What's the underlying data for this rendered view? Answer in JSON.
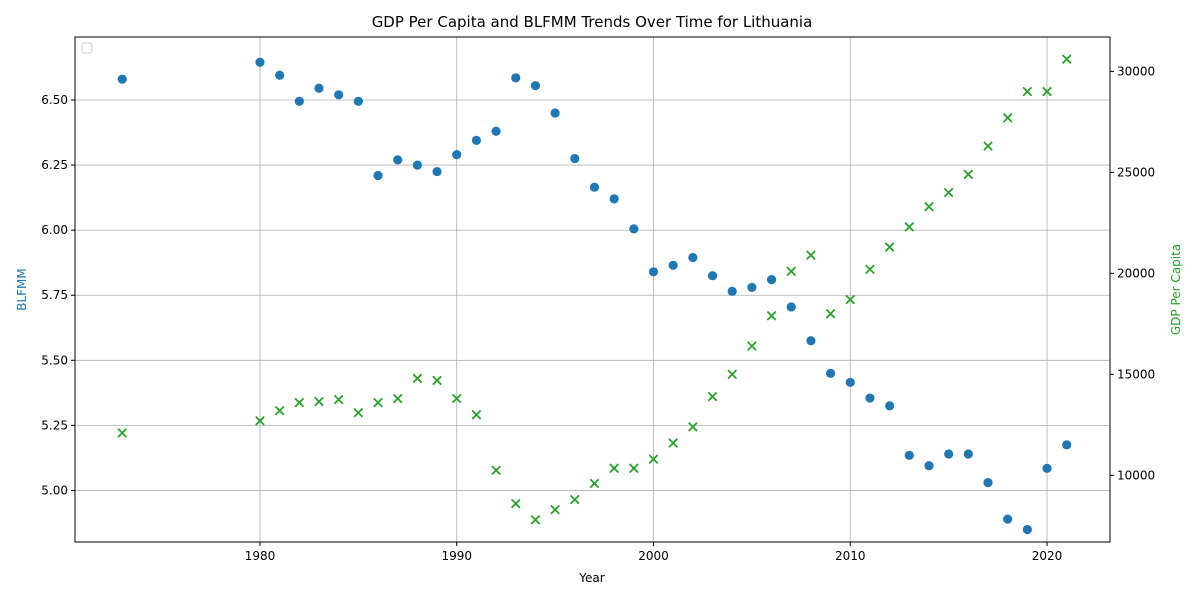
{
  "chart_data": {
    "type": "scatter",
    "title": "GDP Per Capita and BLFMM Trends Over Time for Lithuania",
    "xlabel": "Year",
    "ylabel_left": "BLFMM",
    "ylabel_right": "GDP Per Capita",
    "xlim": [
      1970.6,
      2023.2
    ],
    "ylim_left": [
      4.802,
      6.742
    ],
    "ylim_right": [
      6700,
      31700
    ],
    "x_ticks": [
      1980,
      1990,
      2000,
      2010,
      2020
    ],
    "y_left_ticks": [
      "5.00",
      "5.25",
      "5.50",
      "5.75",
      "6.00",
      "6.25",
      "6.50"
    ],
    "y_right_ticks": [
      "10000",
      "15000",
      "20000",
      "25000",
      "30000"
    ],
    "grid": true,
    "legend": {
      "position": "top-left",
      "entries": []
    },
    "colors": {
      "blfmm": "#1f77b4",
      "gdp": "#2ca02c"
    },
    "series": [
      {
        "name": "BLFMM",
        "axis": "left",
        "marker": "circle",
        "points": [
          [
            1973,
            6.58
          ],
          [
            1980,
            6.645
          ],
          [
            1981,
            6.595
          ],
          [
            1982,
            6.495
          ],
          [
            1983,
            6.545
          ],
          [
            1984,
            6.52
          ],
          [
            1985,
            6.495
          ],
          [
            1986,
            6.21
          ],
          [
            1987,
            6.27
          ],
          [
            1988,
            6.25
          ],
          [
            1989,
            6.225
          ],
          [
            1990,
            6.29
          ],
          [
            1991,
            6.345
          ],
          [
            1992,
            6.38
          ],
          [
            1993,
            6.585
          ],
          [
            1994,
            6.555
          ],
          [
            1995,
            6.45
          ],
          [
            1996,
            6.275
          ],
          [
            1997,
            6.165
          ],
          [
            1998,
            6.12
          ],
          [
            1999,
            6.005
          ],
          [
            2000,
            5.84
          ],
          [
            2001,
            5.865
          ],
          [
            2002,
            5.895
          ],
          [
            2003,
            5.825
          ],
          [
            2004,
            5.765
          ],
          [
            2005,
            5.78
          ],
          [
            2006,
            5.81
          ],
          [
            2007,
            5.705
          ],
          [
            2008,
            5.575
          ],
          [
            2009,
            5.45
          ],
          [
            2010,
            5.415
          ],
          [
            2011,
            5.355
          ],
          [
            2012,
            5.325
          ],
          [
            2013,
            5.135
          ],
          [
            2014,
            5.095
          ],
          [
            2015,
            5.14
          ],
          [
            2016,
            5.14
          ],
          [
            2017,
            5.03
          ],
          [
            2018,
            4.89
          ],
          [
            2019,
            4.85
          ],
          [
            2020,
            5.085
          ],
          [
            2021,
            5.175
          ]
        ]
      },
      {
        "name": "GDP Per Capita",
        "axis": "right",
        "marker": "x",
        "points": [
          [
            1973,
            12100
          ],
          [
            1980,
            12700
          ],
          [
            1981,
            13200
          ],
          [
            1982,
            13600
          ],
          [
            1983,
            13650
          ],
          [
            1984,
            13750
          ],
          [
            1985,
            13100
          ],
          [
            1986,
            13600
          ],
          [
            1987,
            13800
          ],
          [
            1988,
            14800
          ],
          [
            1989,
            14700
          ],
          [
            1990,
            13800
          ],
          [
            1991,
            13000
          ],
          [
            1992,
            10250
          ],
          [
            1993,
            8600
          ],
          [
            1994,
            7800
          ],
          [
            1995,
            8300
          ],
          [
            1996,
            8800
          ],
          [
            1997,
            9600
          ],
          [
            1998,
            10350
          ],
          [
            1999,
            10350
          ],
          [
            2000,
            10800
          ],
          [
            2001,
            11600
          ],
          [
            2002,
            12400
          ],
          [
            2003,
            13900
          ],
          [
            2004,
            15000
          ],
          [
            2005,
            16400
          ],
          [
            2006,
            17900
          ],
          [
            2007,
            20100
          ],
          [
            2008,
            20900
          ],
          [
            2009,
            18000
          ],
          [
            2010,
            18700
          ],
          [
            2011,
            20200
          ],
          [
            2012,
            21300
          ],
          [
            2013,
            22300
          ],
          [
            2014,
            23300
          ],
          [
            2015,
            24000
          ],
          [
            2016,
            24900
          ],
          [
            2017,
            26300
          ],
          [
            2018,
            27700
          ],
          [
            2019,
            29000
          ],
          [
            2020,
            29000
          ],
          [
            2021,
            30600
          ]
        ]
      }
    ]
  }
}
